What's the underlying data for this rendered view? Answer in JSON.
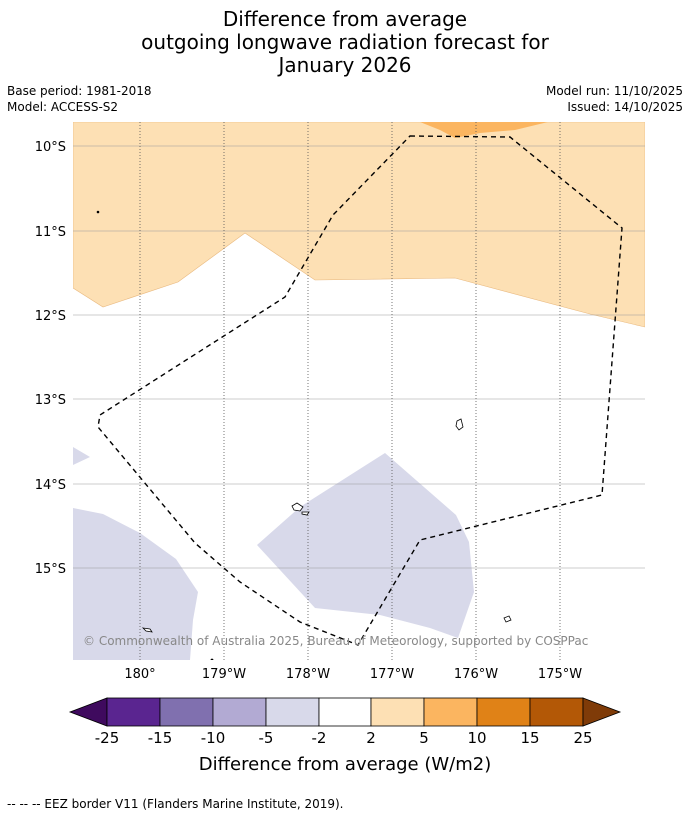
{
  "title": {
    "line1": "Difference from average",
    "line2": "outgoing longwave radiation forecast for",
    "line3": "January 2026"
  },
  "meta": {
    "base_period": "Base period: 1981-2018",
    "model": "Model: ACCESS-S2",
    "model_run": "Model run: 11/10/2025",
    "issued": "Issued: 14/10/2025"
  },
  "map": {
    "lat_labels": [
      "10°S",
      "11°S",
      "12°S",
      "13°S",
      "14°S",
      "15°S"
    ],
    "lon_labels": [
      "180°",
      "179°W",
      "178°W",
      "177°W",
      "176°W",
      "175°W"
    ],
    "copyright": "© Commonwealth of Australia 2025, Bureau of Meteorology, supported by COSPPac",
    "colors": {
      "light_orange": "#fde0b4",
      "orange": "#fbb560",
      "light_purple": "#d8d9ea",
      "grid": "#888888"
    }
  },
  "colorbar": {
    "ticks": [
      "-25",
      "-15",
      "-10",
      "-5",
      "-2",
      "2",
      "5",
      "10",
      "15",
      "25"
    ],
    "label": "Difference from average (W/m2)",
    "colors": [
      "#3f0a5e",
      "#5a2590",
      "#8070af",
      "#b2aad3",
      "#d8d9ea",
      "#ffffff",
      "#fde0b4",
      "#fbb560",
      "#e08217",
      "#b35806",
      "#7f3b08"
    ]
  },
  "footer": {
    "legend": "--  --  -- EEZ border V11 (Flanders Marine Institute, 2019)."
  }
}
